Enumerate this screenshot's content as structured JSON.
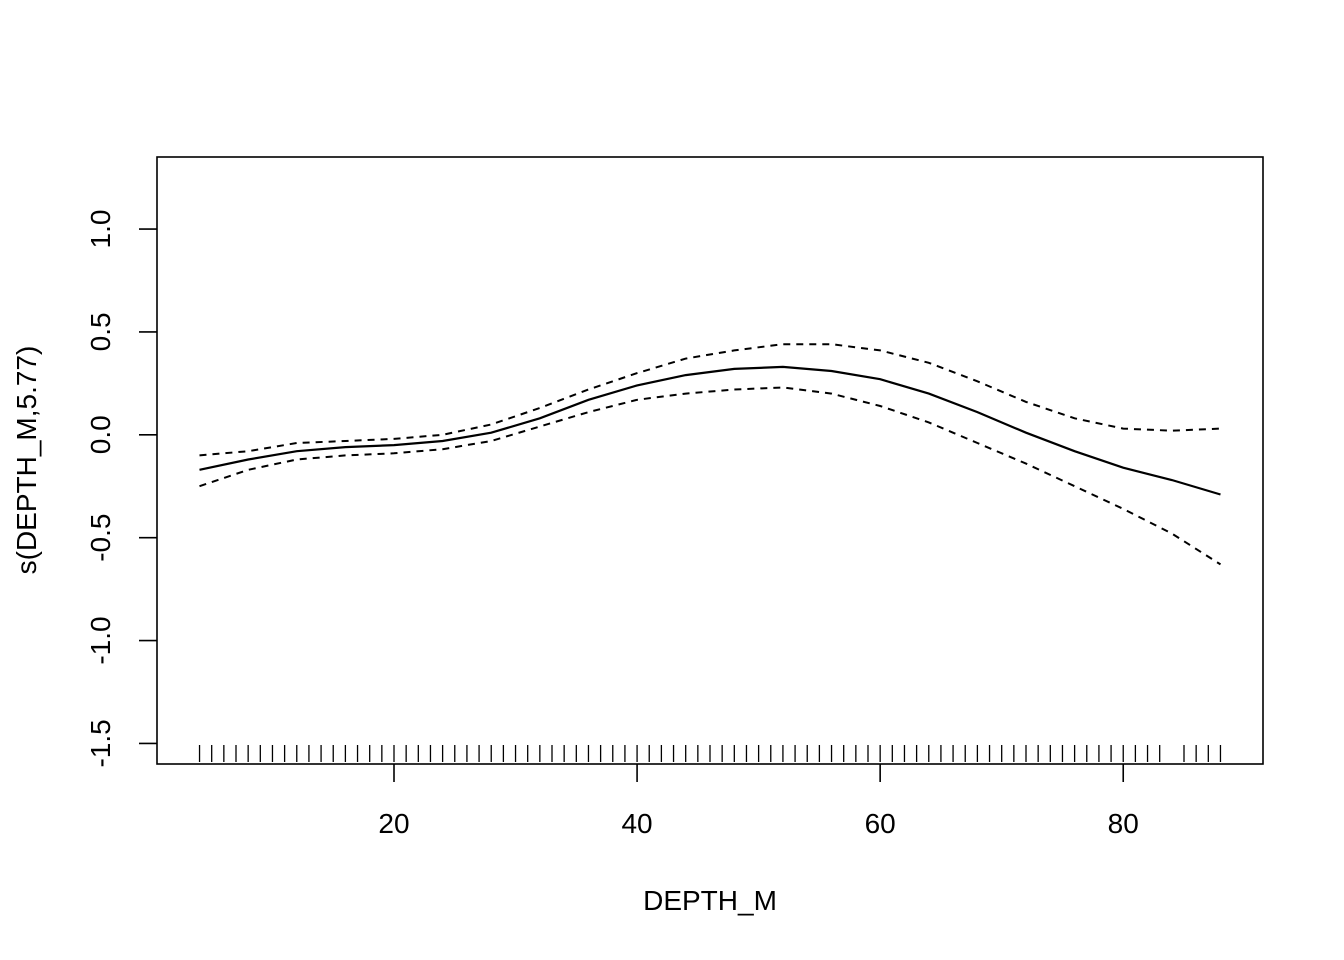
{
  "chart_data": {
    "type": "line",
    "title": "",
    "xlabel": "DEPTH_M",
    "ylabel": "s(DEPTH_M,5.77)",
    "xlim": [
      0.5,
      91.5
    ],
    "ylim": [
      -1.6,
      1.35
    ],
    "x_ticks": [
      20,
      40,
      60,
      80
    ],
    "y_ticks": [
      -1.5,
      -1.0,
      -0.5,
      0.0,
      0.5,
      1.0
    ],
    "x_tick_labels": [
      "20",
      "40",
      "60",
      "80"
    ],
    "y_tick_labels": [
      "-1.5",
      "-1.0",
      "-0.5",
      "0.0",
      "0.5",
      "1.0"
    ],
    "grid": false,
    "legend": "none",
    "series": [
      {
        "style": "solid",
        "x": [
          4,
          8,
          12,
          16,
          20,
          24,
          28,
          32,
          36,
          40,
          44,
          48,
          52,
          56,
          60,
          64,
          68,
          72,
          76,
          80,
          84,
          88
        ],
        "y": [
          -0.17,
          -0.12,
          -0.08,
          -0.06,
          -0.05,
          -0.03,
          0.01,
          0.08,
          0.17,
          0.24,
          0.29,
          0.32,
          0.33,
          0.31,
          0.27,
          0.2,
          0.11,
          0.01,
          -0.08,
          -0.16,
          -0.22,
          -0.29
        ]
      },
      {
        "style": "dashed",
        "x": [
          4,
          8,
          12,
          16,
          20,
          24,
          28,
          32,
          36,
          40,
          44,
          48,
          52,
          56,
          60,
          64,
          68,
          72,
          76,
          80,
          84,
          88
        ],
        "y": [
          -0.1,
          -0.08,
          -0.04,
          -0.03,
          -0.02,
          0.0,
          0.05,
          0.13,
          0.22,
          0.3,
          0.37,
          0.41,
          0.44,
          0.44,
          0.41,
          0.35,
          0.26,
          0.16,
          0.08,
          0.03,
          0.02,
          0.03
        ]
      },
      {
        "style": "dashed",
        "x": [
          4,
          8,
          12,
          16,
          20,
          24,
          28,
          32,
          36,
          40,
          44,
          48,
          52,
          56,
          60,
          64,
          68,
          72,
          76,
          80,
          84,
          88
        ],
        "y": [
          -0.25,
          -0.17,
          -0.12,
          -0.1,
          -0.09,
          -0.07,
          -0.03,
          0.04,
          0.11,
          0.17,
          0.2,
          0.22,
          0.23,
          0.2,
          0.14,
          0.06,
          -0.04,
          -0.14,
          -0.25,
          -0.36,
          -0.48,
          -0.63
        ]
      }
    ],
    "rug": [
      4,
      5,
      6,
      7,
      8,
      9,
      10,
      11,
      12,
      13,
      14,
      15,
      16,
      17,
      18,
      19,
      20,
      21,
      22,
      23,
      24,
      25,
      26,
      27,
      28,
      29,
      30,
      31,
      32,
      33,
      34,
      35,
      36,
      37,
      38,
      39,
      40,
      41,
      42,
      43,
      44,
      45,
      46,
      47,
      48,
      49,
      50,
      51,
      52,
      53,
      54,
      55,
      56,
      57,
      58,
      59,
      60,
      61,
      62,
      63,
      64,
      65,
      66,
      67,
      68,
      69,
      70,
      71,
      72,
      73,
      74,
      75,
      76,
      77,
      78,
      79,
      80,
      81,
      82,
      83,
      85,
      86,
      87,
      88
    ]
  }
}
